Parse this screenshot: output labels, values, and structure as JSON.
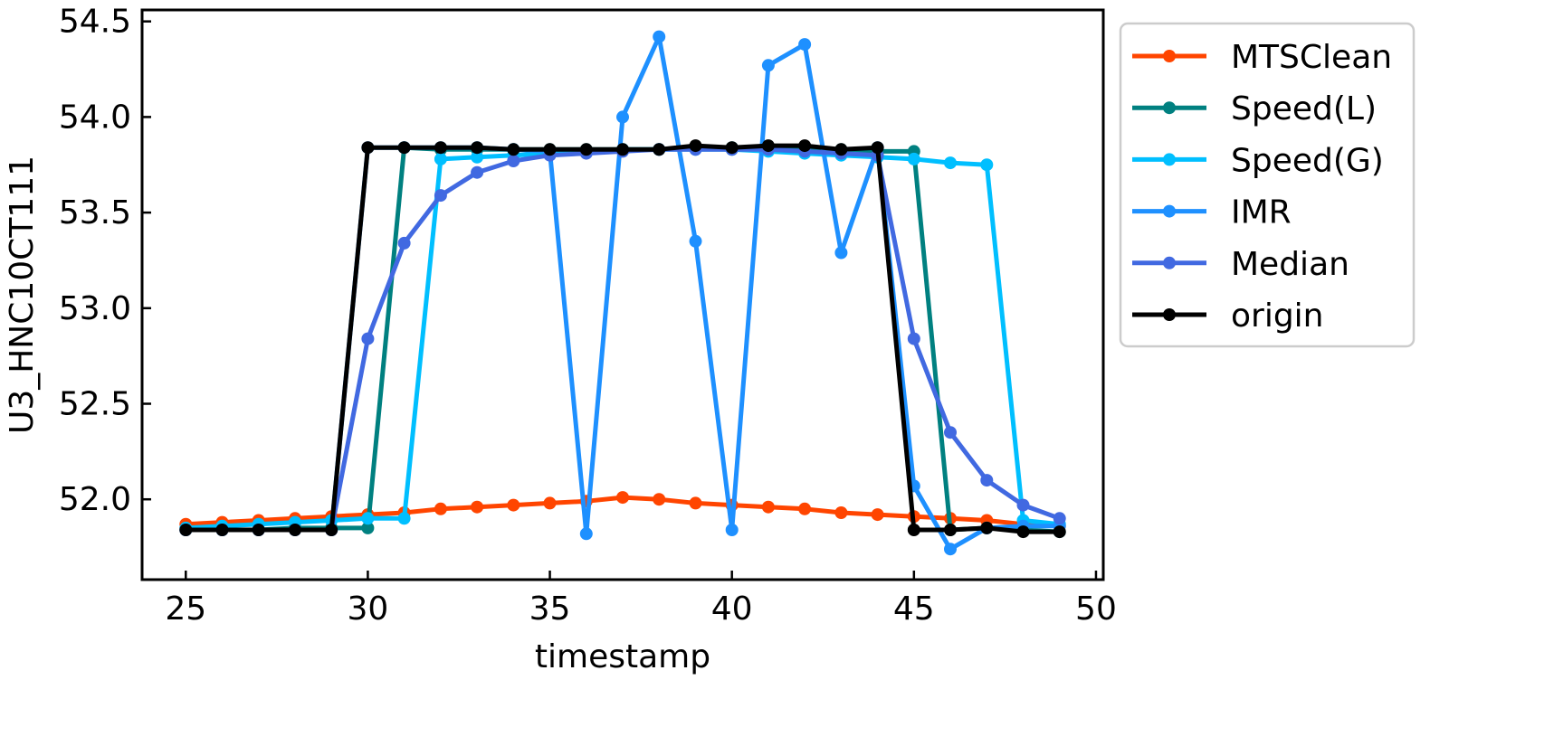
{
  "chart_data": {
    "type": "line",
    "title": "",
    "xlabel": "timestamp",
    "ylabel": "U3_HNC10CT111",
    "xlim": [
      23.8,
      50.2
    ],
    "ylim": [
      51.58,
      54.56
    ],
    "x_ticks": [
      25,
      30,
      35,
      40,
      45,
      50
    ],
    "y_ticks": [
      52.0,
      52.5,
      53.0,
      53.5,
      54.0,
      54.5
    ],
    "x_tick_labels": [
      "25",
      "30",
      "35",
      "40",
      "45",
      "50"
    ],
    "y_tick_labels": [
      "52.0",
      "52.5",
      "53.0",
      "53.5",
      "54.0",
      "54.5"
    ],
    "grid": false,
    "legend_position": "outside-right",
    "x": [
      25,
      26,
      27,
      28,
      29,
      30,
      31,
      32,
      33,
      34,
      35,
      36,
      37,
      38,
      39,
      40,
      41,
      42,
      43,
      44,
      45,
      46,
      47,
      48,
      49
    ],
    "series": [
      {
        "name": "MTSClean",
        "color": "#ff4500",
        "values": [
          51.87,
          51.88,
          51.89,
          51.9,
          51.91,
          51.92,
          51.93,
          51.95,
          51.96,
          51.97,
          51.98,
          51.99,
          52.01,
          52.0,
          51.98,
          51.97,
          51.96,
          51.95,
          51.93,
          51.92,
          51.91,
          51.9,
          51.89,
          51.87,
          51.86
        ]
      },
      {
        "name": "Speed(L)",
        "color": "#008080",
        "values": [
          51.84,
          51.84,
          51.84,
          51.85,
          51.85,
          51.85,
          53.84,
          53.83,
          53.83,
          53.83,
          53.83,
          53.83,
          53.83,
          53.83,
          53.84,
          53.84,
          53.84,
          53.84,
          53.83,
          53.82,
          53.82,
          51.84,
          51.85,
          51.84,
          51.83
        ]
      },
      {
        "name": "Speed(G)",
        "color": "#00bfff",
        "values": [
          51.85,
          51.86,
          51.87,
          51.88,
          51.89,
          51.9,
          51.9,
          53.78,
          53.79,
          53.8,
          53.81,
          53.82,
          53.83,
          53.83,
          53.83,
          53.83,
          53.82,
          53.81,
          53.8,
          53.79,
          53.78,
          53.76,
          53.75,
          51.89,
          51.87
        ]
      },
      {
        "name": "IMR",
        "color": "#1e90ff",
        "values": [
          51.84,
          51.84,
          51.84,
          51.84,
          51.84,
          53.84,
          53.84,
          53.84,
          53.84,
          53.83,
          53.82,
          51.82,
          54.0,
          54.42,
          53.35,
          51.84,
          54.27,
          54.38,
          53.29,
          53.84,
          52.07,
          51.74,
          51.85,
          51.86,
          51.86
        ]
      },
      {
        "name": "Median",
        "color": "#4169e1",
        "values": [
          51.84,
          51.84,
          51.84,
          51.84,
          51.84,
          52.84,
          53.34,
          53.59,
          53.71,
          53.77,
          53.8,
          53.81,
          53.82,
          53.83,
          53.83,
          53.83,
          53.83,
          53.82,
          53.81,
          53.8,
          52.84,
          52.35,
          52.1,
          51.97,
          51.9
        ]
      },
      {
        "name": "origin",
        "color": "#000000",
        "values": [
          51.84,
          51.84,
          51.84,
          51.84,
          51.84,
          53.84,
          53.84,
          53.84,
          53.84,
          53.83,
          53.83,
          53.83,
          53.83,
          53.83,
          53.85,
          53.84,
          53.85,
          53.85,
          53.83,
          53.84,
          51.84,
          51.84,
          51.85,
          51.83,
          51.83
        ]
      }
    ]
  }
}
